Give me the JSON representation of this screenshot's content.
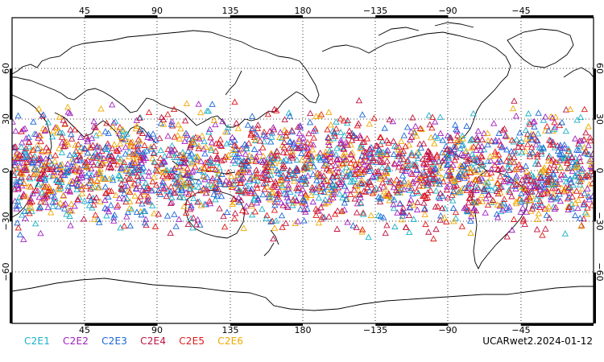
{
  "map": {
    "x_ticks": [
      "45",
      "90",
      "135",
      "180",
      "−135",
      "−90",
      "−45"
    ],
    "y_ticks_left": [
      "60",
      "30",
      "0",
      "−30",
      "−60"
    ],
    "y_ticks_right": [
      "60",
      "30",
      "0",
      "−30",
      "−60"
    ],
    "lat_range": [
      -90,
      90
    ],
    "lon_start": 0,
    "gridlines": "dotted",
    "coastline_color": "#000000",
    "marker_shape": "triangle-outline",
    "observation_lat_band": [
      -45,
      45
    ]
  },
  "legend": [
    {
      "label": "C2E1",
      "color": "#1ab0c8"
    },
    {
      "label": "C2E2",
      "color": "#a020c0"
    },
    {
      "label": "C2E3",
      "color": "#1a66d8"
    },
    {
      "label": "C2E4",
      "color": "#c01040"
    },
    {
      "label": "C2E5",
      "color": "#e01818"
    },
    {
      "label": "C2E6",
      "color": "#f0a800"
    }
  ],
  "footer": {
    "title": "UCARwet2.2024-01-12"
  }
}
